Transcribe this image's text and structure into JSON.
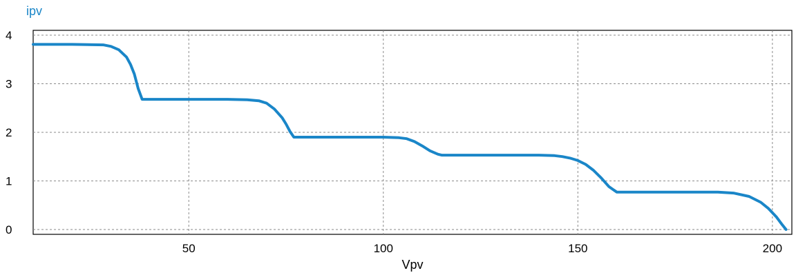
{
  "chart_data": {
    "type": "line",
    "title": "",
    "xlabel": "Vpv",
    "ylabel": "ipv",
    "xlim": [
      10,
      205
    ],
    "ylim": [
      -0.1,
      4.1
    ],
    "xticks": [
      "50",
      "100",
      "150",
      "200"
    ],
    "yticks": [
      "0",
      "1",
      "2",
      "3",
      "4"
    ],
    "grid": true,
    "series_color": "#1a86c8",
    "series": [
      {
        "name": "ipv",
        "x": [
          10,
          20,
          28,
          30,
          32,
          34,
          35,
          36,
          37,
          38,
          40,
          50,
          60,
          65,
          68,
          70,
          72,
          74,
          75,
          76,
          77,
          80,
          90,
          100,
          104,
          106,
          108,
          110,
          112,
          114,
          115,
          120,
          130,
          140,
          144,
          146,
          148,
          150,
          152,
          154,
          156,
          158,
          160,
          170,
          180,
          186,
          190,
          194,
          197,
          199,
          201,
          202.5,
          203.5
        ],
        "y": [
          3.81,
          3.81,
          3.8,
          3.77,
          3.7,
          3.55,
          3.4,
          3.2,
          2.9,
          2.68,
          2.68,
          2.68,
          2.68,
          2.67,
          2.65,
          2.6,
          2.48,
          2.3,
          2.17,
          2.02,
          1.9,
          1.9,
          1.9,
          1.9,
          1.89,
          1.87,
          1.81,
          1.72,
          1.62,
          1.55,
          1.53,
          1.53,
          1.53,
          1.53,
          1.52,
          1.5,
          1.47,
          1.42,
          1.34,
          1.22,
          1.06,
          0.88,
          0.77,
          0.77,
          0.77,
          0.77,
          0.75,
          0.68,
          0.56,
          0.43,
          0.26,
          0.1,
          0.0
        ]
      }
    ]
  }
}
